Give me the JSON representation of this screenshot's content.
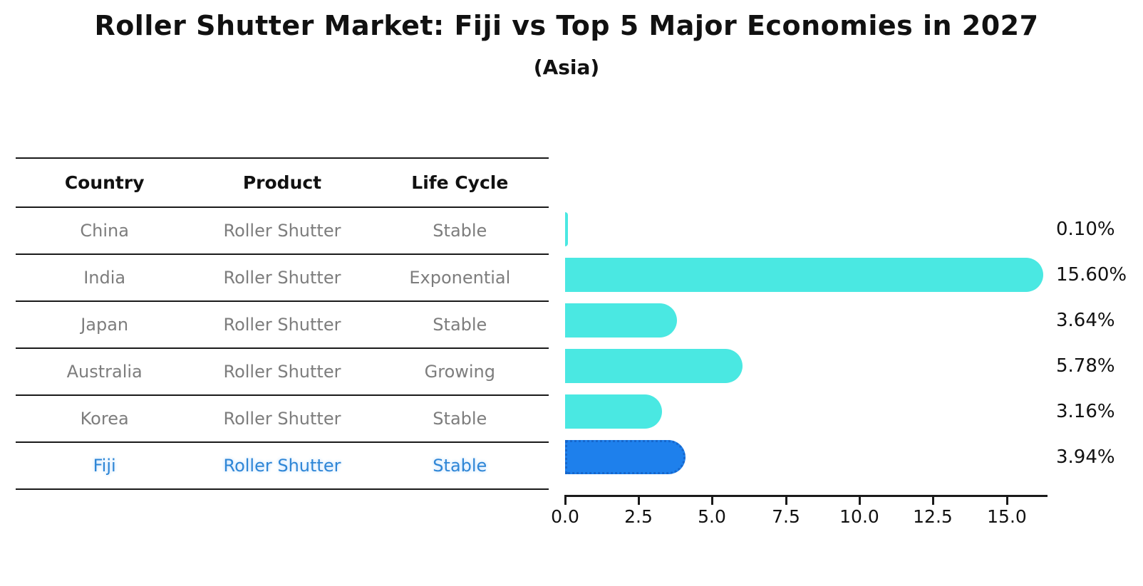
{
  "title": "Roller Shutter Market: Fiji vs Top 5 Major Economies in 2027",
  "subtitle": "(Asia)",
  "table": {
    "headers": [
      "Country",
      "Product",
      "Life Cycle"
    ],
    "rows": [
      {
        "country": "China",
        "product": "Roller Shutter",
        "life_cycle": "Stable",
        "highlight": false
      },
      {
        "country": "India",
        "product": "Roller Shutter",
        "life_cycle": "Exponential",
        "highlight": false
      },
      {
        "country": "Japan",
        "product": "Roller Shutter",
        "life_cycle": "Stable",
        "highlight": false
      },
      {
        "country": "Australia",
        "product": "Roller Shutter",
        "life_cycle": "Growing",
        "highlight": false
      },
      {
        "country": "Korea",
        "product": "Roller Shutter",
        "life_cycle": "Stable",
        "highlight": false
      },
      {
        "country": "Fiji",
        "product": "Roller Shutter",
        "life_cycle": "Stable",
        "highlight": true
      }
    ]
  },
  "chart_data": {
    "type": "bar",
    "orientation": "horizontal",
    "title": "Roller Shutter Market: Fiji vs Top 5 Major Economies in 2027",
    "subtitle": "(Asia)",
    "categories": [
      "China",
      "India",
      "Japan",
      "Australia",
      "Korea",
      "Fiji"
    ],
    "values": [
      0.1,
      15.6,
      3.64,
      5.78,
      3.16,
      3.94
    ],
    "labels": [
      "0.10%",
      "15.60%",
      "3.64%",
      "5.78%",
      "3.16%",
      "3.94%"
    ],
    "xlabel": "",
    "ylabel": "",
    "xlim": [
      0,
      16.4
    ],
    "x_ticks": [
      "0.0",
      "2.5",
      "5.0",
      "7.5",
      "10.0",
      "12.5",
      "15.0"
    ],
    "grid": false,
    "legend": "none",
    "value_label_position": "right-outside",
    "bar_color": "#4AE8E2",
    "highlight_index": 5,
    "highlight_color": "#1E80EC",
    "highlight_border_color": "#1667CC"
  }
}
